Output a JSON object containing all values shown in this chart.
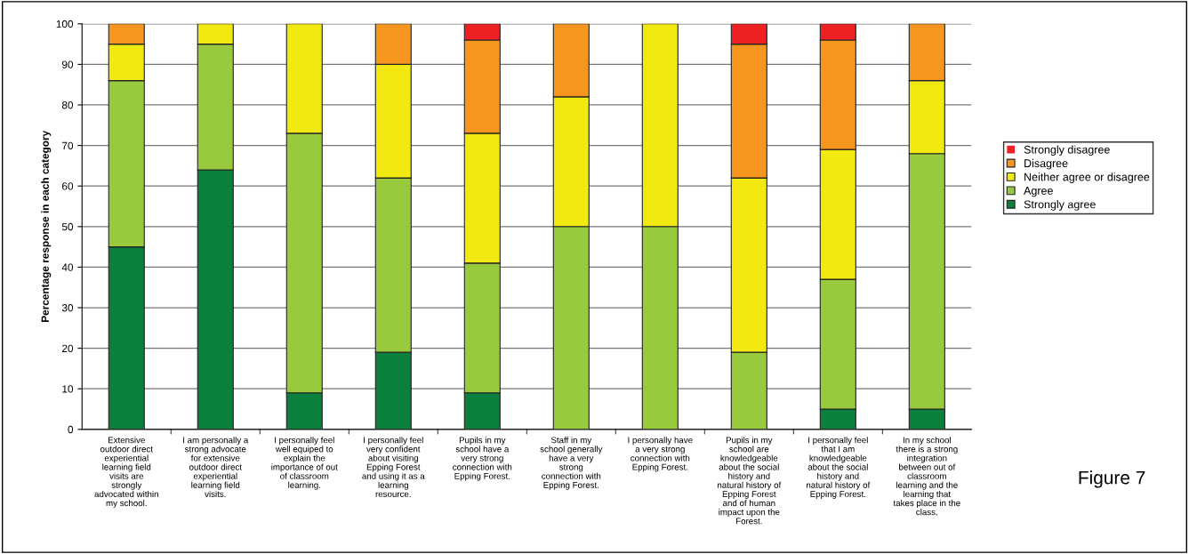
{
  "chart_data": {
    "type": "bar",
    "stacked": true,
    "ylabel": "Percentage response in each category",
    "categories": [
      "Extensive\noutdoor direct\nexperiential\nlearning field\nvisits are\nstrongly\nadvocated within\nmy school.",
      "I am personally a\nstrong advocate\nfor extensive\noutdoor direct\nexperiential\nlearning field\nvisits.",
      "I personally feel\nwell equiped to\nexplain the\nimportance of out\nof classroom\nlearning.",
      "I personally feel\nvery confident\nabout visiting\nEpping Forest\nand using it as a\nlearning\nresource.",
      "Pupils in my\nschool have a\nvery strong\nconnection with\nEpping Forest.",
      "Staff in my\nschool generally\nhave a very\nstrong\nconnection with\nEpping Forest.",
      "I personally have\na very strong\nconnection with\nEpping Forest.",
      "Pupils in my\nschool are\nknowledgeable\nabout the social\nhistory and\nnatural history of\nEpping Forest\nand of human\nimpact upon the\nForest.",
      "I personally feel\nthat I am\nknowledgeable\nabout the social\nhistory and\nnatural history of\nEpping Forest.",
      "In my school\nthere is a strong\nintegration\nbetween out of\nclassroom\nlearning and the\nlearning that\ntakes place in the\nclass."
    ],
    "series": [
      {
        "name": "Strongly agree",
        "color": "#0b7f3c",
        "values": [
          45,
          64,
          9,
          19,
          9,
          0,
          0,
          0,
          5,
          5
        ]
      },
      {
        "name": "Agree",
        "color": "#99c93c",
        "values": [
          41,
          31,
          64,
          43,
          32,
          50,
          50,
          19,
          32,
          63
        ]
      },
      {
        "name": "Neither agree or disagree",
        "color": "#f2e911",
        "values": [
          9,
          5,
          27,
          28,
          32,
          32,
          50,
          43,
          32,
          18
        ]
      },
      {
        "name": "Disagree",
        "color": "#f7961e",
        "values": [
          5,
          0,
          0,
          10,
          23,
          18,
          0,
          33,
          27,
          14
        ]
      },
      {
        "name": "Strongly disagree",
        "color": "#ed2024",
        "values": [
          0,
          0,
          0,
          0,
          4,
          0,
          0,
          5,
          4,
          0
        ]
      }
    ],
    "ylim": [
      0,
      100
    ],
    "yticks": [
      0,
      10,
      20,
      30,
      40,
      50,
      60,
      70,
      80,
      90,
      100
    ],
    "grid": "y",
    "legend": "right",
    "annotations": [
      "Figure 7"
    ]
  }
}
